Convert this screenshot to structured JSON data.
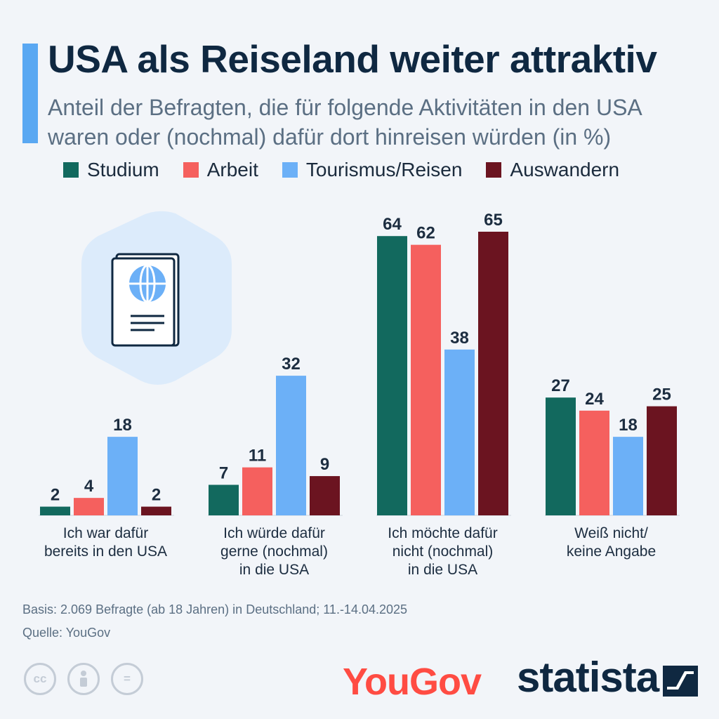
{
  "header": {
    "title": "USA als Reiseland weiter attraktiv",
    "subtitle": "Anteil der Befragten, die für folgende Aktivitäten in den USA waren oder (nochmal) dafür dort hinreisen würden (in %)"
  },
  "legend": [
    {
      "label": "Studium",
      "color": "#12695e"
    },
    {
      "label": "Arbeit",
      "color": "#f5605e"
    },
    {
      "label": "Tourismus/Reisen",
      "color": "#6cb0f7"
    },
    {
      "label": "Auswandern",
      "color": "#6b1420"
    }
  ],
  "chart_data": {
    "type": "bar",
    "categories": [
      [
        "Ich war dafür",
        "bereits in den USA"
      ],
      [
        "Ich würde dafür",
        "gerne (nochmal)",
        "in die USA"
      ],
      [
        "Ich möchte dafür",
        "nicht (nochmal)",
        "in die USA"
      ],
      [
        "Weiß nicht/",
        "keine Angabe"
      ]
    ],
    "series": [
      {
        "name": "Studium",
        "values": [
          2,
          7,
          64,
          27
        ]
      },
      {
        "name": "Arbeit",
        "values": [
          4,
          11,
          62,
          24
        ]
      },
      {
        "name": "Tourismus/Reisen",
        "values": [
          18,
          32,
          38,
          18
        ]
      },
      {
        "name": "Auswandern",
        "values": [
          2,
          9,
          65,
          25
        ]
      }
    ],
    "ylim": [
      0,
      65
    ],
    "grid": false,
    "legend_position": "top-left"
  },
  "footer": {
    "basis": "Basis: 2.069 Befragte (ab 18 Jahren) in Deutschland; 11.-14.04.2025",
    "source": "Quelle: YouGov"
  },
  "license_icons": [
    {
      "name": "cc-icon",
      "text": "cc"
    },
    {
      "name": "attribution-icon",
      "text": ""
    },
    {
      "name": "no-derivatives-icon",
      "text": "="
    }
  ],
  "brands": {
    "yougov": "YouGov",
    "statista": "statista"
  }
}
